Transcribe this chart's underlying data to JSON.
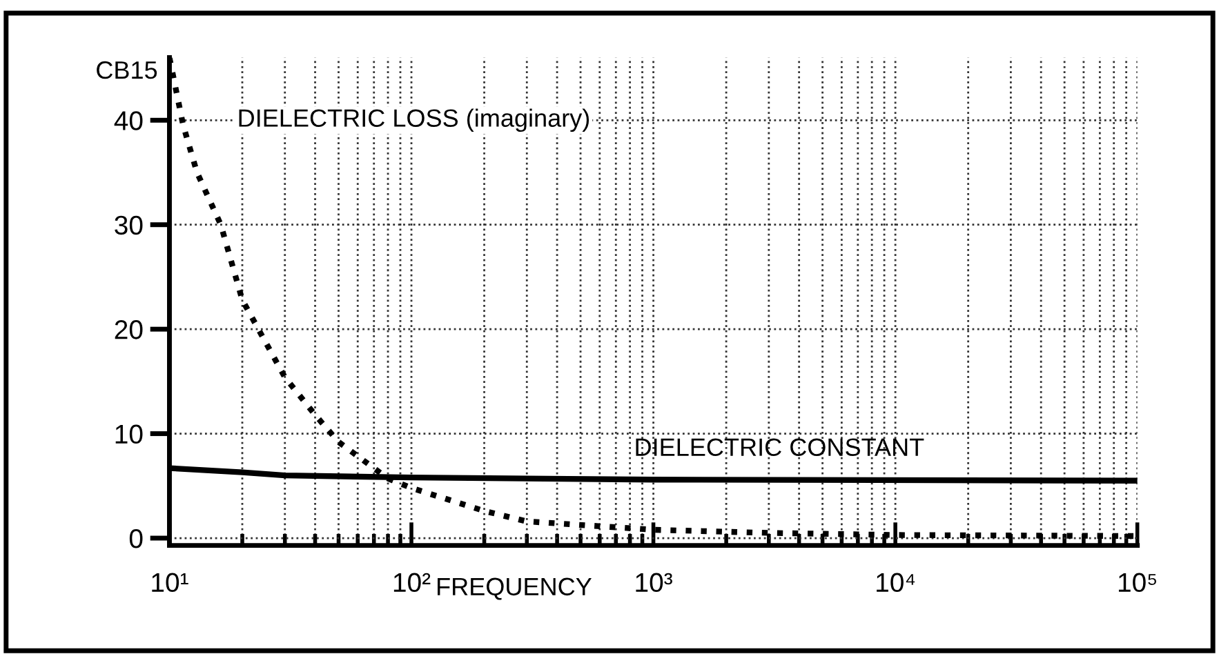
{
  "chart_data": {
    "type": "line",
    "ylabel": "CB15",
    "xlabel": "FREQUENCY",
    "log": "x",
    "grid": true,
    "xlim": [
      10,
      100000
    ],
    "ylim": [
      -0.7,
      46
    ],
    "xticks": [
      {
        "value": 10,
        "label": "10¹"
      },
      {
        "value": 100,
        "label": "10²"
      },
      {
        "value": 1000,
        "label": "10³"
      },
      {
        "value": 10000,
        "label": "10⁴"
      },
      {
        "value": 100000,
        "label": "10⁵"
      }
    ],
    "yticks": [
      0,
      10,
      20,
      30,
      40
    ],
    "series": [
      {
        "name": "DIELECTRIC LOSS (imaginary)",
        "color": "#000000",
        "line_style": "dotted",
        "x": [
          10,
          11.4,
          13,
          16.3,
          20,
          30,
          40,
          50,
          80,
          100,
          200,
          300,
          1000,
          3000,
          10000,
          100000
        ],
        "values": [
          46,
          39.5,
          35,
          30,
          22.8,
          15.4,
          11.8,
          9.2,
          5.7,
          4.8,
          2.6,
          1.6,
          0.8,
          0.5,
          0.3,
          0.2
        ]
      },
      {
        "name": "DIELECTRIC CONSTANT",
        "color": "#000000",
        "line_style": "solid",
        "x": [
          10,
          20,
          30,
          100,
          1000,
          100000
        ],
        "values": [
          6.7,
          6.3,
          6.0,
          5.8,
          5.6,
          5.5
        ]
      }
    ]
  }
}
